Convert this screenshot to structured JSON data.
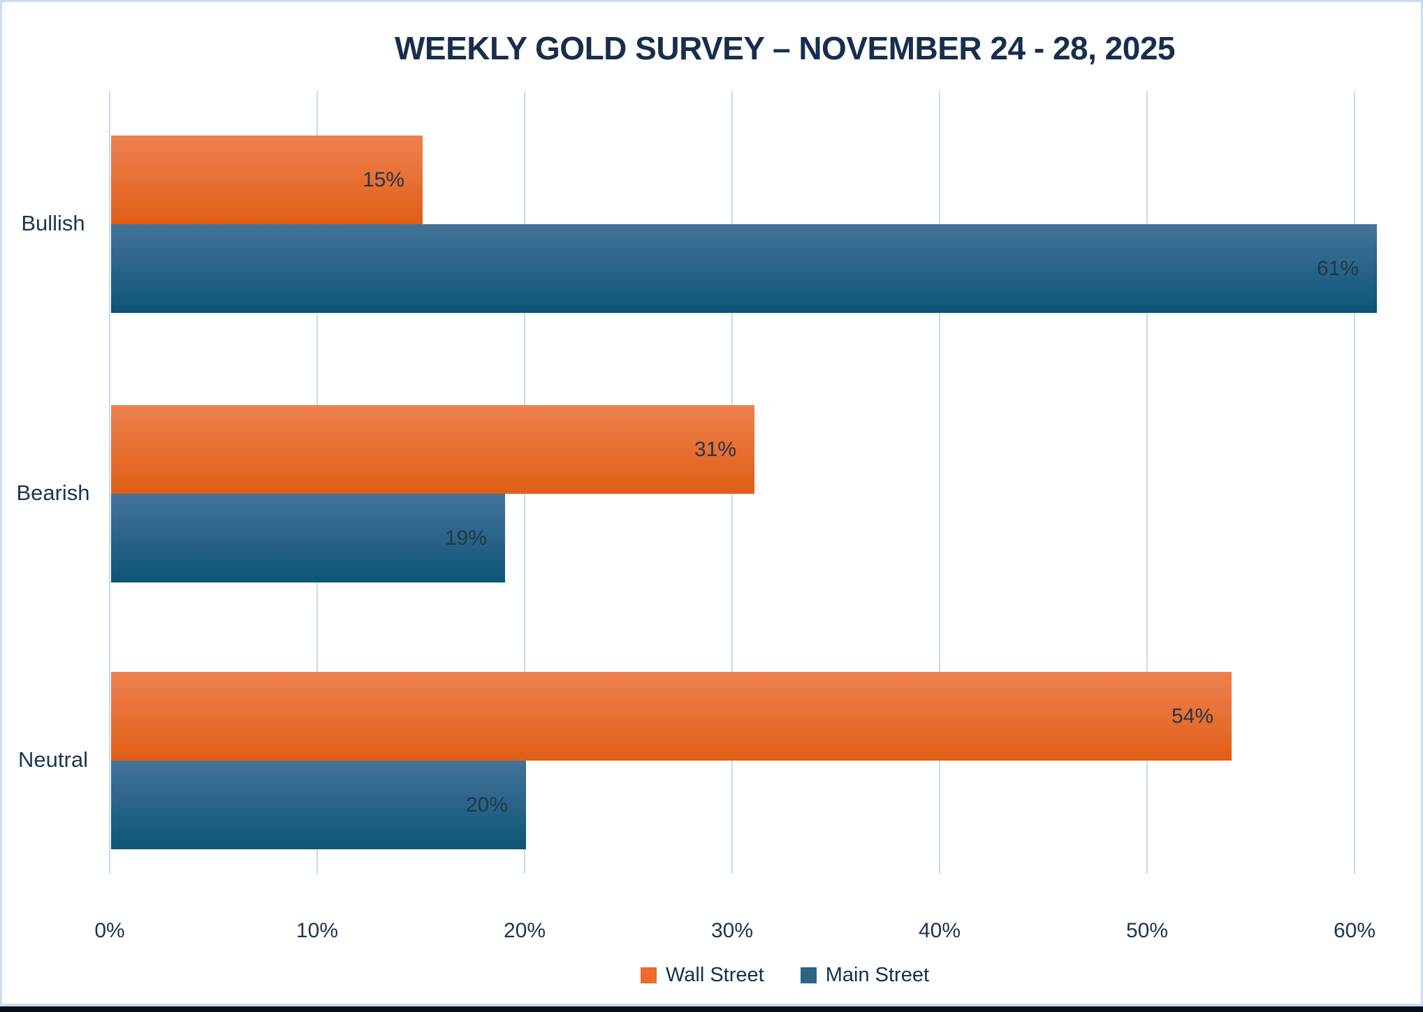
{
  "chart_data": {
    "type": "bar",
    "orientation": "horizontal",
    "title": "WEEKLY GOLD SURVEY – NOVEMBER 24 - 28, 2025",
    "categories": [
      "Bullish",
      "Bearish",
      "Neutral"
    ],
    "series": [
      {
        "name": "Wall Street",
        "values": [
          15,
          31,
          54
        ],
        "labels": [
          "15%",
          "31%",
          "54%"
        ],
        "color_top": "#ee8150",
        "color_bottom": "#e05e16",
        "legend_color": "#ed6b2d"
      },
      {
        "name": "Main Street",
        "values": [
          61,
          19,
          20
        ],
        "labels": [
          "61%",
          "19%",
          "20%"
        ],
        "color_top": "#45739a",
        "color_bottom": "#0c5575",
        "legend_color": "#2d6486"
      }
    ],
    "x_axis": {
      "ticks": [
        "0%",
        "10%",
        "20%",
        "30%",
        "40%",
        "50%",
        "60%"
      ],
      "xlim": [
        0,
        60
      ],
      "unit": "%"
    },
    "grid": true,
    "legend_position": "bottom",
    "colors": {
      "gridline": "#c5dbef",
      "frame_border": "#c9dcf2",
      "bottom_strip": "#070d1a",
      "title_text": "#172e4d",
      "axis_text": "#1c3550",
      "value_label_text": "#233649"
    }
  }
}
